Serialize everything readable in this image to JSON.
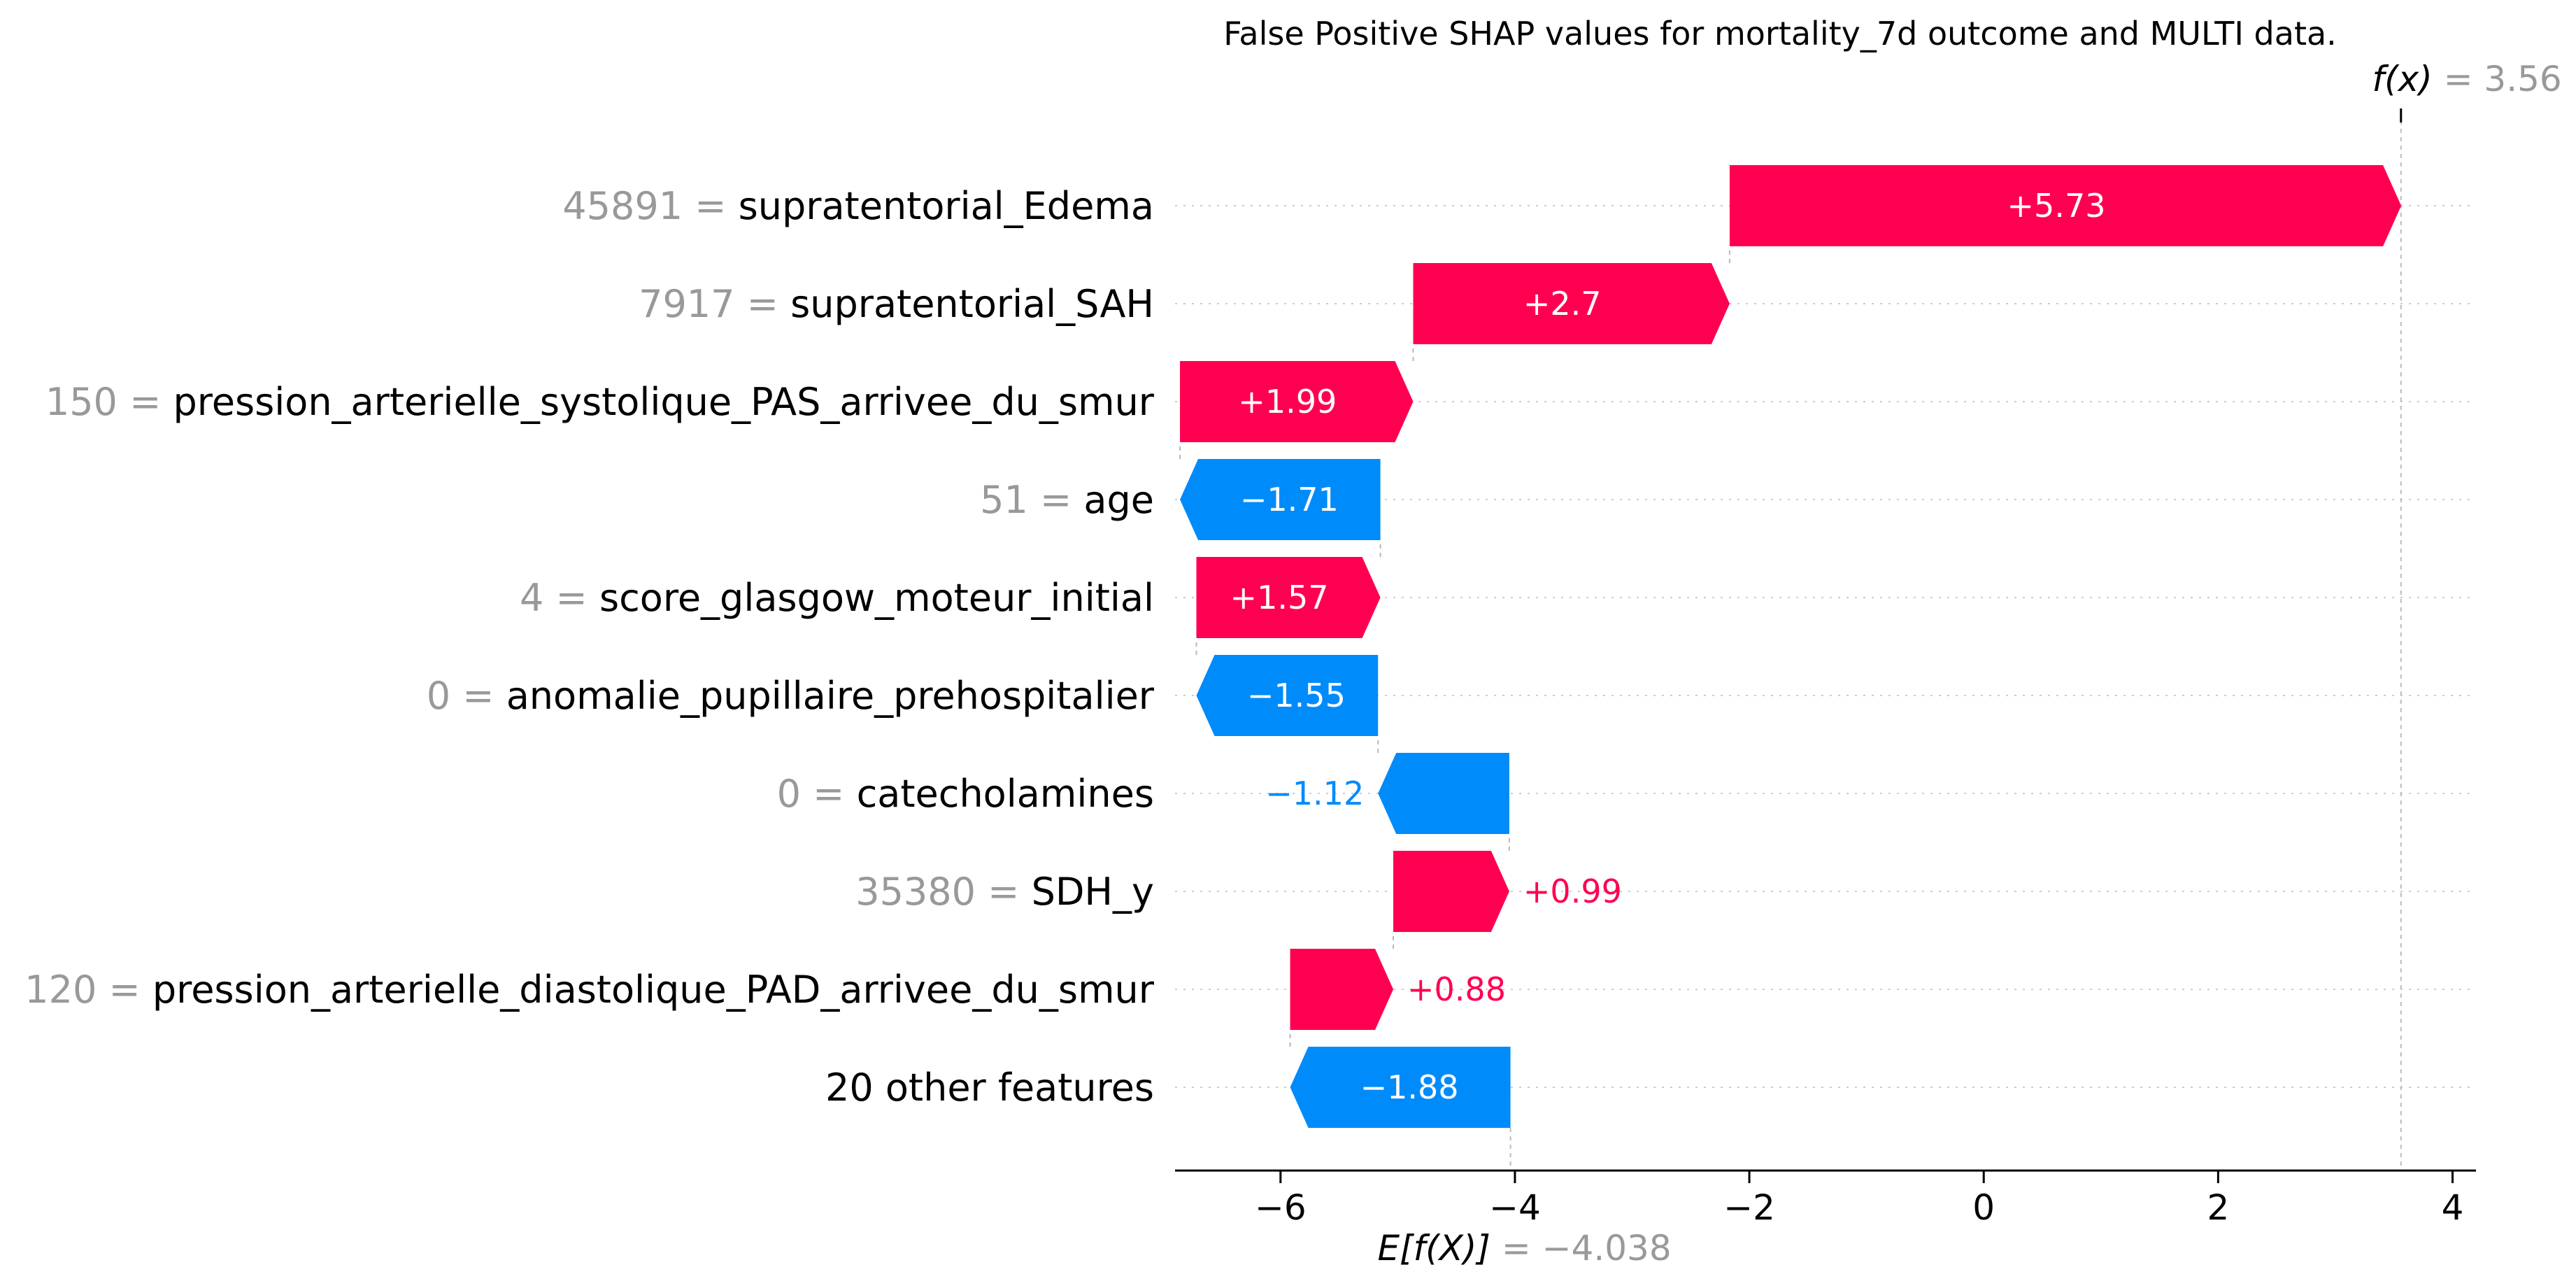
{
  "chart_data": {
    "type": "bar",
    "title": "False Positive SHAP values for mortality_7d outcome and MULTI data.",
    "base_value": -4.038,
    "base_value_label": "-4.038",
    "output_value": 3.56,
    "output_value_label": "3.56",
    "base_label_math": "E[f(X)]",
    "output_label_math": "f(x)",
    "xlim": [
      -6.9,
      4.2
    ],
    "x_ticks": [
      -6,
      -4,
      -2,
      0,
      2,
      4
    ],
    "x_tick_labels": [
      "−6",
      "−4",
      "−2",
      "0",
      "2",
      "4"
    ],
    "features": [
      {
        "value": "45891",
        "name": "supratentorial_Edema",
        "shap": 5.73,
        "label": "+5.73"
      },
      {
        "value": "7917",
        "name": "supratentorial_SAH",
        "shap": 2.7,
        "label": "+2.7"
      },
      {
        "value": "150",
        "name": "pression_arterielle_systolique_PAS_arrivee_du_smur",
        "shap": 1.99,
        "label": "+1.99"
      },
      {
        "value": "51",
        "name": "age",
        "shap": -1.71,
        "label": "−1.71"
      },
      {
        "value": "4",
        "name": "score_glasgow_moteur_initial",
        "shap": 1.57,
        "label": "+1.57"
      },
      {
        "value": "0",
        "name": "anomalie_pupillaire_prehospitalier",
        "shap": -1.55,
        "label": "−1.55"
      },
      {
        "value": "0",
        "name": "catecholamines",
        "shap": -1.12,
        "label": "−1.12"
      },
      {
        "value": "35380",
        "name": "SDH_y",
        "shap": 0.99,
        "label": "+0.99"
      },
      {
        "value": "120",
        "name": "pression_arterielle_diastolique_PAD_arrivee_du_smur",
        "shap": 0.88,
        "label": "+0.88"
      },
      {
        "value": "",
        "name": "20 other features",
        "shap": -1.88,
        "label": "−1.88"
      }
    ],
    "colors": {
      "positive": "#ff0051",
      "negative": "#008bfb",
      "value_text": "#999999"
    }
  }
}
